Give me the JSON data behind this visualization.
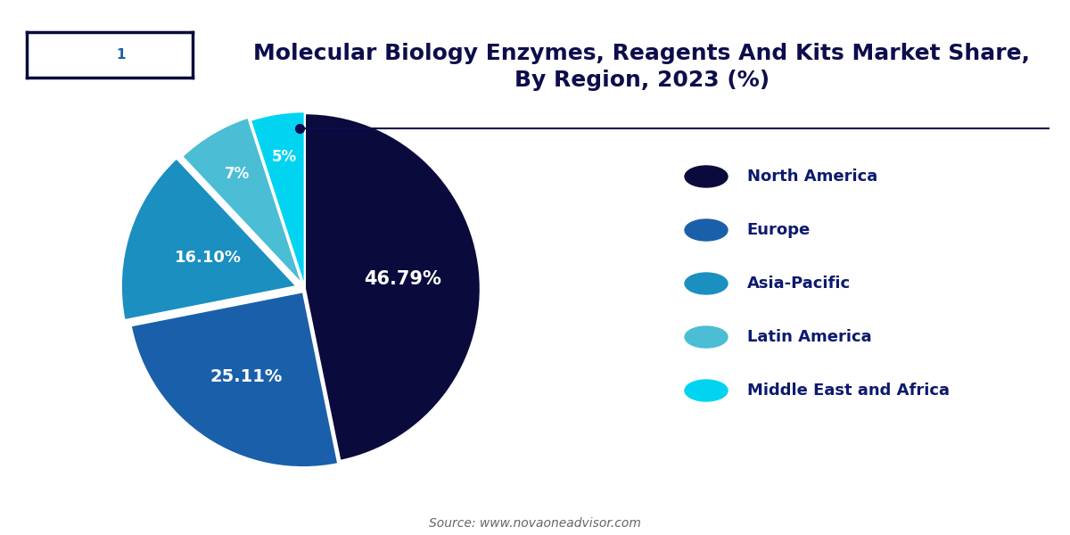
{
  "title": "Molecular Biology Enzymes, Reagents And Kits Market Share,\nBy Region, 2023 (%)",
  "labels": [
    "North America",
    "Europe",
    "Asia-Pacific",
    "Latin America",
    "Middle East and Africa"
  ],
  "values": [
    46.79,
    25.11,
    16.1,
    7.0,
    5.0
  ],
  "colors": [
    "#0a0a3d",
    "#1a5faa",
    "#1a8fc0",
    "#4bbdd4",
    "#00d4f0"
  ],
  "autopct_labels": [
    "46.79%",
    "25.11%",
    "16.10%",
    "7%",
    "5%"
  ],
  "explode": [
    0,
    0.02,
    0.05,
    0.03,
    0.01
  ],
  "source_text": "Source: www.novaoneadvisor.com",
  "title_color": "#0d0d4d",
  "legend_text_color": "#0d1a6e",
  "background_color": "#ffffff",
  "title_fontsize": 18,
  "legend_fontsize": 13,
  "line_color": "#0d0d4d",
  "logo_bg_color": "#1a5faa",
  "logo_border_color": "#0a0a3d"
}
